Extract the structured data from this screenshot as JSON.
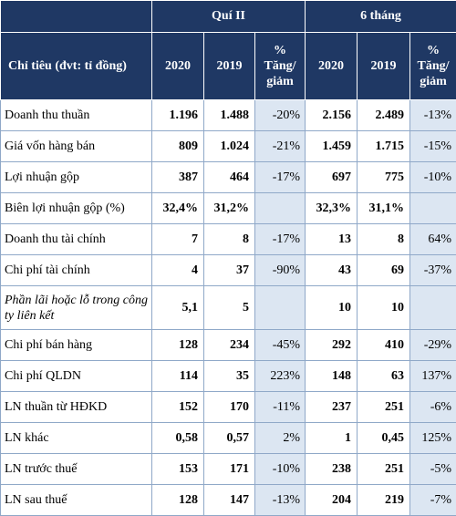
{
  "header": {
    "group_q2": "Quí II",
    "group_6m": "6 tháng",
    "indicator": "Chỉ tiêu (đvt: tỉ đồng)",
    "y2020": "2020",
    "y2019": "2019",
    "pct_symbol": "%",
    "pct_line1": "Tăng/",
    "pct_line2": "giảm"
  },
  "rows": [
    {
      "label": "Doanh thu thuần",
      "q2_2020": "1.196",
      "q2_2019": "1.488",
      "q2_chg": "-20%",
      "h_2020": "2.156",
      "h_2019": "2.489",
      "h_chg": "-13%"
    },
    {
      "label": "Giá vốn hàng bán",
      "q2_2020": "809",
      "q2_2019": "1.024",
      "q2_chg": "-21%",
      "h_2020": "1.459",
      "h_2019": "1.715",
      "h_chg": "-15%"
    },
    {
      "label": "Lợi nhuận gộp",
      "q2_2020": "387",
      "q2_2019": "464",
      "q2_chg": "-17%",
      "h_2020": "697",
      "h_2019": "775",
      "h_chg": "-10%"
    },
    {
      "label": "Biên lợi nhuận gộp (%)",
      "q2_2020": "32,4%",
      "q2_2019": "31,2%",
      "q2_chg": "",
      "h_2020": "32,3%",
      "h_2019": "31,1%",
      "h_chg": ""
    },
    {
      "label": "Doanh thu tài chính",
      "q2_2020": "7",
      "q2_2019": "8",
      "q2_chg": "-17%",
      "h_2020": "13",
      "h_2019": "8",
      "h_chg": "64%"
    },
    {
      "label": "Chi phí tài chính",
      "q2_2020": "4",
      "q2_2019": "37",
      "q2_chg": "-90%",
      "h_2020": "43",
      "h_2019": "69",
      "h_chg": "-37%"
    },
    {
      "label": "Phần lãi hoặc lỗ trong công ty liên kết",
      "q2_2020": "5,1",
      "q2_2019": "5",
      "q2_chg": "",
      "h_2020": "10",
      "h_2019": "10",
      "h_chg": ""
    },
    {
      "label": "Chi phí bán hàng",
      "q2_2020": "128",
      "q2_2019": "234",
      "q2_chg": "-45%",
      "h_2020": "292",
      "h_2019": "410",
      "h_chg": "-29%"
    },
    {
      "label": "Chi phí QLDN",
      "q2_2020": "114",
      "q2_2019": "35",
      "q2_chg": "223%",
      "h_2020": "148",
      "h_2019": "63",
      "h_chg": "137%"
    },
    {
      "label": "LN thuần từ HĐKD",
      "q2_2020": "152",
      "q2_2019": "170",
      "q2_chg": "-11%",
      "h_2020": "237",
      "h_2019": "251",
      "h_chg": "-6%"
    },
    {
      "label": "LN khác",
      "q2_2020": "0,58",
      "q2_2019": "0,57",
      "q2_chg": "2%",
      "h_2020": "1",
      "h_2019": "0,45",
      "h_chg": "125%"
    },
    {
      "label": "LN trước thuế",
      "q2_2020": "153",
      "q2_2019": "171",
      "q2_chg": "-10%",
      "h_2020": "238",
      "h_2019": "251",
      "h_chg": "-5%"
    },
    {
      "label": "LN sau thuế",
      "q2_2020": "128",
      "q2_2019": "147",
      "q2_chg": "-13%",
      "h_2020": "204",
      "h_2019": "219",
      "h_chg": "-7%"
    }
  ],
  "colors": {
    "header_bg": "#1f3864",
    "header_text": "#ffffff",
    "change_cell_bg": "#dce6f2",
    "grid_line": "#8fa8c8"
  }
}
